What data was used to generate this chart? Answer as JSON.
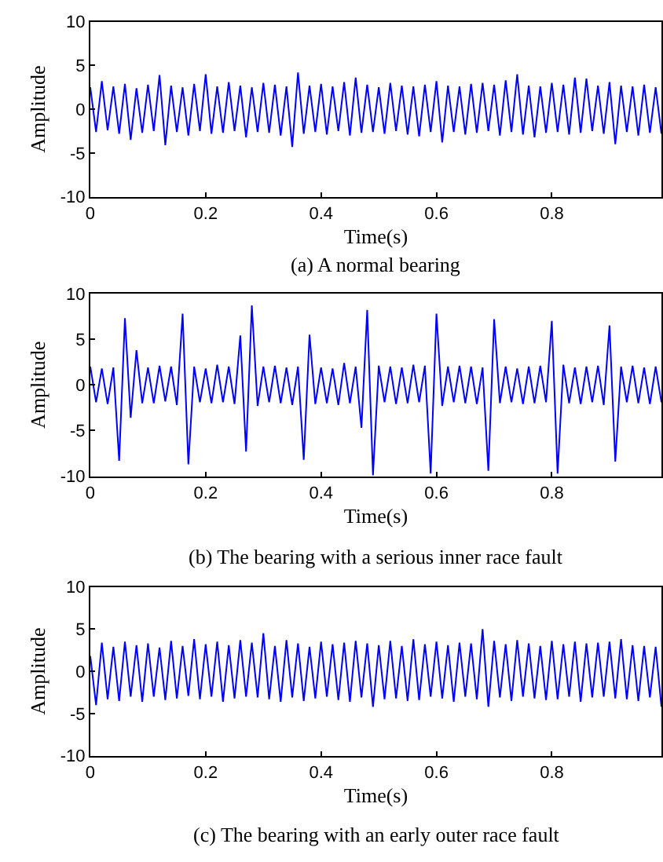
{
  "chart_data": [
    {
      "type": "line",
      "title": "(a) A normal bearing",
      "xlabel": "Time(s)",
      "ylabel": "Amplitude",
      "xlim": [
        0,
        0.99
      ],
      "ylim": [
        -10,
        10
      ],
      "xticks": [
        0,
        0.2,
        0.4,
        0.6,
        0.8
      ],
      "yticks": [
        -10,
        -5,
        0,
        5,
        10
      ],
      "marker": "none",
      "line_style": "solid",
      "x": [
        0,
        0.01,
        0.02,
        0.03,
        0.04,
        0.05,
        0.06,
        0.07,
        0.08,
        0.09,
        0.1,
        0.11,
        0.12,
        0.13,
        0.14,
        0.15,
        0.16,
        0.17,
        0.18,
        0.19,
        0.2,
        0.21,
        0.22,
        0.23,
        0.24,
        0.25,
        0.26,
        0.27,
        0.28,
        0.29,
        0.3,
        0.31,
        0.32,
        0.33,
        0.34,
        0.35,
        0.36,
        0.37,
        0.38,
        0.39,
        0.4,
        0.41,
        0.42,
        0.43,
        0.44,
        0.45,
        0.46,
        0.47,
        0.48,
        0.49,
        0.5,
        0.51,
        0.52,
        0.53,
        0.54,
        0.55,
        0.56,
        0.57,
        0.58,
        0.59,
        0.6,
        0.61,
        0.62,
        0.63,
        0.64,
        0.65,
        0.66,
        0.67,
        0.68,
        0.69,
        0.7,
        0.71,
        0.72,
        0.73,
        0.74,
        0.75,
        0.76,
        0.77,
        0.78,
        0.79,
        0.8,
        0.81,
        0.82,
        0.83,
        0.84,
        0.85,
        0.86,
        0.87,
        0.88,
        0.89,
        0.9,
        0.91,
        0.92,
        0.93,
        0.94,
        0.95,
        0.96,
        0.97,
        0.98,
        0.99
      ],
      "series": [
        {
          "color": "#0000ff",
          "values": [
            2.5,
            -2.6,
            3.2,
            -2.4,
            2.6,
            -2.8,
            2.9,
            -3.5,
            2.4,
            -2.7,
            2.8,
            -2.5,
            3.9,
            -4.1,
            2.7,
            -2.6,
            2.5,
            -3.0,
            2.9,
            -2.5,
            4.0,
            -2.8,
            2.6,
            -2.7,
            3.1,
            -2.5,
            2.7,
            -3.2,
            2.5,
            -2.6,
            3.0,
            -2.7,
            2.8,
            -3.0,
            2.6,
            -4.3,
            4.2,
            -2.8,
            2.7,
            -2.6,
            2.9,
            -2.9,
            2.6,
            -2.5,
            3.1,
            -3.0,
            3.6,
            -2.7,
            2.8,
            -2.6,
            2.5,
            -2.8,
            3.0,
            -2.5,
            2.7,
            -2.9,
            2.6,
            -3.1,
            2.8,
            -2.6,
            3.2,
            -3.8,
            2.7,
            -2.6,
            2.6,
            -2.9,
            2.9,
            -2.7,
            3.0,
            -2.5,
            2.8,
            -3.0,
            3.3,
            -2.6,
            4.0,
            -2.9,
            2.7,
            -3.2,
            2.6,
            -2.7,
            3.0,
            -2.6,
            2.8,
            -2.9,
            3.6,
            -2.7,
            3.5,
            -2.5,
            2.7,
            -2.8,
            3.1,
            -4.0,
            2.7,
            -2.6,
            2.6,
            -3.0,
            2.8,
            -2.7,
            2.5,
            -2.8
          ]
        }
      ]
    },
    {
      "type": "line",
      "title": "(b) The bearing with a serious inner race fault",
      "xlabel": "Time(s)",
      "ylabel": "Amplitude",
      "xlim": [
        0,
        0.99
      ],
      "ylim": [
        -10,
        10
      ],
      "xticks": [
        0,
        0.2,
        0.4,
        0.6,
        0.8
      ],
      "yticks": [
        -10,
        -5,
        0,
        5,
        10
      ],
      "marker": "none",
      "line_style": "solid",
      "x": [
        0,
        0.01,
        0.02,
        0.03,
        0.04,
        0.05,
        0.06,
        0.07,
        0.08,
        0.09,
        0.1,
        0.11,
        0.12,
        0.13,
        0.14,
        0.15,
        0.16,
        0.17,
        0.18,
        0.19,
        0.2,
        0.21,
        0.22,
        0.23,
        0.24,
        0.25,
        0.26,
        0.27,
        0.28,
        0.29,
        0.3,
        0.31,
        0.32,
        0.33,
        0.34,
        0.35,
        0.36,
        0.37,
        0.38,
        0.39,
        0.4,
        0.41,
        0.42,
        0.43,
        0.44,
        0.45,
        0.46,
        0.47,
        0.48,
        0.49,
        0.5,
        0.51,
        0.52,
        0.53,
        0.54,
        0.55,
        0.56,
        0.57,
        0.58,
        0.59,
        0.6,
        0.61,
        0.62,
        0.63,
        0.64,
        0.65,
        0.66,
        0.67,
        0.68,
        0.69,
        0.7,
        0.71,
        0.72,
        0.73,
        0.74,
        0.75,
        0.76,
        0.77,
        0.78,
        0.79,
        0.8,
        0.81,
        0.82,
        0.83,
        0.84,
        0.85,
        0.86,
        0.87,
        0.88,
        0.89,
        0.9,
        0.91,
        0.92,
        0.93,
        0.94,
        0.95,
        0.96,
        0.97,
        0.98,
        0.99
      ],
      "series": [
        {
          "color": "#0000ff",
          "values": [
            2.0,
            -1.9,
            1.8,
            -2.1,
            1.9,
            -8.3,
            7.3,
            -3.6,
            3.8,
            -2.0,
            1.9,
            -2.0,
            2.1,
            -1.8,
            2.0,
            -2.2,
            7.8,
            -8.7,
            2.0,
            -1.9,
            1.8,
            -2.0,
            2.2,
            -1.9,
            2.0,
            -2.1,
            5.4,
            -7.3,
            8.7,
            -2.3,
            2.0,
            -1.9,
            2.1,
            -2.0,
            1.9,
            -2.2,
            2.0,
            -8.2,
            5.5,
            -2.1,
            1.9,
            -2.0,
            1.8,
            -2.2,
            2.4,
            -2.0,
            2.0,
            -4.7,
            8.2,
            -9.9,
            2.1,
            -1.9,
            2.0,
            -2.1,
            1.9,
            -2.0,
            2.2,
            -1.9,
            2.1,
            -9.7,
            7.8,
            -2.3,
            2.0,
            -1.9,
            2.1,
            -2.0,
            2.0,
            -2.1,
            1.9,
            -9.4,
            7.2,
            -2.0,
            2.0,
            -1.9,
            1.8,
            -2.1,
            2.0,
            -2.0,
            2.1,
            -1.9,
            7.0,
            -9.7,
            2.2,
            -2.0,
            1.9,
            -2.1,
            2.0,
            -1.9,
            2.1,
            -2.2,
            6.5,
            -8.4,
            2.0,
            -1.9,
            2.1,
            -2.0,
            1.9,
            -2.1,
            2.0,
            -1.9
          ]
        }
      ]
    },
    {
      "type": "line",
      "title": "(c) The bearing with an early outer race fault",
      "xlabel": "Time(s)",
      "ylabel": "Amplitude",
      "xlim": [
        0,
        0.99
      ],
      "ylim": [
        -10,
        10
      ],
      "xticks": [
        0,
        0.2,
        0.4,
        0.6,
        0.8
      ],
      "yticks": [
        -10,
        -5,
        0,
        5,
        10
      ],
      "marker": "none",
      "line_style": "solid",
      "x": [
        0,
        0.01,
        0.02,
        0.03,
        0.04,
        0.05,
        0.06,
        0.07,
        0.08,
        0.09,
        0.1,
        0.11,
        0.12,
        0.13,
        0.14,
        0.15,
        0.16,
        0.17,
        0.18,
        0.19,
        0.2,
        0.21,
        0.22,
        0.23,
        0.24,
        0.25,
        0.26,
        0.27,
        0.28,
        0.29,
        0.3,
        0.31,
        0.32,
        0.33,
        0.34,
        0.35,
        0.36,
        0.37,
        0.38,
        0.39,
        0.4,
        0.41,
        0.42,
        0.43,
        0.44,
        0.45,
        0.46,
        0.47,
        0.48,
        0.49,
        0.5,
        0.51,
        0.52,
        0.53,
        0.54,
        0.55,
        0.56,
        0.57,
        0.58,
        0.59,
        0.6,
        0.61,
        0.62,
        0.63,
        0.64,
        0.65,
        0.66,
        0.67,
        0.68,
        0.69,
        0.7,
        0.71,
        0.72,
        0.73,
        0.74,
        0.75,
        0.76,
        0.77,
        0.78,
        0.79,
        0.8,
        0.81,
        0.82,
        0.83,
        0.84,
        0.85,
        0.86,
        0.87,
        0.88,
        0.89,
        0.9,
        0.91,
        0.92,
        0.93,
        0.94,
        0.95,
        0.96,
        0.97,
        0.98,
        0.99
      ],
      "series": [
        {
          "color": "#0000ff",
          "values": [
            1.8,
            -4.0,
            3.4,
            -3.3,
            2.9,
            -3.5,
            3.5,
            -3.0,
            3.1,
            -3.6,
            3.3,
            -3.0,
            2.8,
            -3.4,
            3.6,
            -3.2,
            3.0,
            -2.9,
            3.8,
            -3.3,
            3.2,
            -3.0,
            3.5,
            -3.6,
            3.1,
            -3.2,
            3.7,
            -3.0,
            3.4,
            -3.1,
            4.5,
            -3.3,
            3.0,
            -3.6,
            3.7,
            -3.1,
            3.3,
            -3.5,
            2.9,
            -3.2,
            3.5,
            -3.0,
            3.2,
            -3.4,
            3.4,
            -3.6,
            3.6,
            -3.1,
            3.3,
            -4.2,
            3.1,
            -3.3,
            3.6,
            -3.2,
            3.0,
            -3.5,
            3.8,
            -3.4,
            3.2,
            -3.0,
            3.5,
            -3.2,
            3.1,
            -3.6,
            3.4,
            -3.0,
            3.3,
            -3.3,
            5.0,
            -4.2,
            3.6,
            -3.1,
            3.2,
            -3.5,
            3.7,
            -3.0,
            3.3,
            -3.2,
            3.0,
            -3.4,
            3.6,
            -3.3,
            3.2,
            -3.0,
            3.5,
            -3.6,
            3.3,
            -3.1,
            3.4,
            -3.0,
            3.5,
            -3.2,
            3.8,
            -3.3,
            3.1,
            -3.5,
            3.0,
            -3.1,
            2.9,
            -4.2
          ]
        }
      ]
    }
  ]
}
